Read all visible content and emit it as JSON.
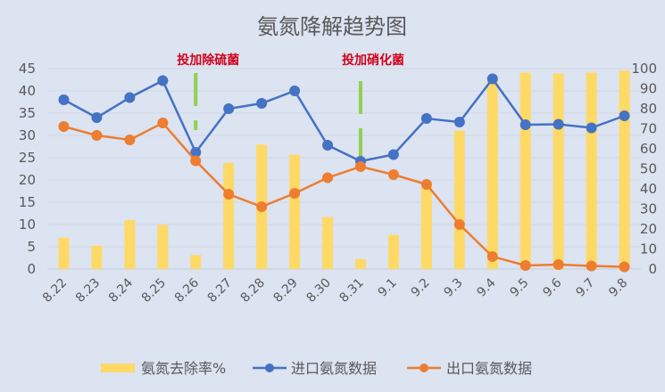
{
  "chart_data": {
    "type": "bar+line",
    "title": "氨氮降解趋势图",
    "categories": [
      "8.22",
      "8.23",
      "8.24",
      "8.25",
      "8.26",
      "8.27",
      "8.28",
      "8.29",
      "8.30",
      "8.31",
      "9.1",
      "9.2",
      "9.3",
      "9.4",
      "9.5",
      "9.6",
      "9.7",
      "9.8"
    ],
    "left_axis": {
      "ylim": [
        0,
        45
      ],
      "ticks": [
        0,
        5,
        10,
        15,
        20,
        25,
        30,
        35,
        40,
        45
      ]
    },
    "right_axis": {
      "ylim": [
        0,
        100
      ],
      "ticks": [
        0,
        10,
        20,
        30,
        40,
        50,
        60,
        70,
        80,
        90,
        100
      ]
    },
    "grid": true,
    "legend_position": "bottom",
    "series": [
      {
        "name": "氨氮去除率%",
        "type": "bar",
        "axis": "right",
        "color": "#ffd966",
        "values": [
          15.6,
          11.6,
          24.4,
          22,
          7,
          53,
          62,
          57,
          26,
          5,
          17,
          42,
          69,
          94,
          98,
          97.5,
          98,
          99
        ]
      },
      {
        "name": "进口氨氮数据",
        "type": "line",
        "axis": "left",
        "color": "#4472c4",
        "values": [
          38,
          34,
          38.5,
          42.3,
          26.2,
          36,
          37.2,
          40,
          27.8,
          24.2,
          25.7,
          33.8,
          33,
          42.7,
          32.4,
          32.5,
          31.7,
          34.4
        ]
      },
      {
        "name": "出口氨氮数据",
        "type": "line",
        "axis": "left",
        "color": "#ed7d31",
        "values": [
          32,
          30,
          29,
          32.8,
          24.3,
          16.8,
          14,
          17,
          20.5,
          23,
          21.2,
          19,
          10,
          2.8,
          0.8,
          1,
          0.7,
          0.5
        ]
      }
    ],
    "annotations": [
      {
        "text": "投加除硫菌",
        "category": "8.26",
        "marker_color": "#92d050"
      },
      {
        "text": "投加硝化菌",
        "category": "8.31",
        "marker_color": "#92d050"
      }
    ]
  }
}
